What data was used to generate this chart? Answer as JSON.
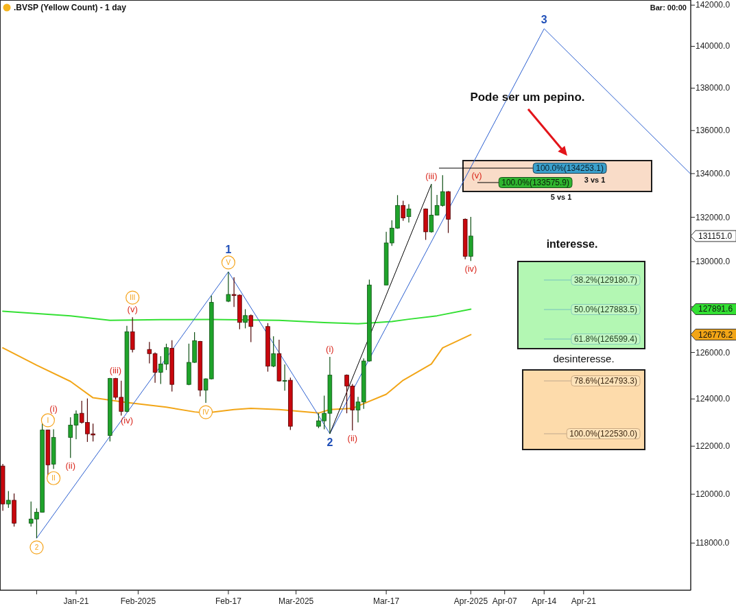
{
  "chart_data": {
    "type": "candlestick",
    "title": ".BVSP (Yellow Count) - 1 day",
    "subtitle": "Bar: 00:00",
    "log": true,
    "xlim": [
      "2025-01-07T12:00",
      "2025-05-10"
    ],
    "xticks": [
      {
        "value": "2025-01-14",
        "label": null
      },
      {
        "value": "2025-01-21",
        "label": "Jan-21"
      },
      {
        "value": "2025-02-01",
        "label": "Feb-2025"
      },
      {
        "value": "2025-02-17",
        "label": "Feb-17"
      },
      {
        "value": "2025-03-01",
        "label": "Mar-2025"
      },
      {
        "value": "2025-03-17",
        "label": "Mar-17"
      },
      {
        "value": "2025-04-01",
        "label": "Apr-2025"
      },
      {
        "value": "2025-04-07",
        "label": "Apr-07"
      },
      {
        "value": "2025-04-14",
        "label": "Apr-14"
      },
      {
        "value": "2025-04-21",
        "label": "Apr-21"
      }
    ],
    "ylim": [
      116100,
      142250
    ],
    "yticks": [
      {
        "value": 118000,
        "label": "118000.0"
      },
      {
        "value": 120000,
        "label": "120000.0"
      },
      {
        "value": 122000,
        "label": "122000.0"
      },
      {
        "value": 124000,
        "label": "124000.0"
      },
      {
        "value": 126000,
        "label": "126000.0"
      },
      {
        "value": 128000,
        "label": null
      },
      {
        "value": 130000,
        "label": "130000.0"
      },
      {
        "value": 132000,
        "label": "132000.0"
      },
      {
        "value": 134000,
        "label": "134000.0"
      },
      {
        "value": 136000,
        "label": "136000.0"
      },
      {
        "value": 138000,
        "label": "138000.0"
      },
      {
        "value": 140000,
        "label": "140000.0"
      },
      {
        "value": 142000,
        "label": "142000.0"
      }
    ],
    "x": [
      "2025-01-08",
      "2025-01-09",
      "2025-01-10",
      "2025-01-13",
      "2025-01-14",
      "2025-01-15",
      "2025-01-16",
      "2025-01-17",
      "2025-01-20",
      "2025-01-21",
      "2025-01-22",
      "2025-01-23",
      "2025-01-24",
      "2025-01-27",
      "2025-01-28",
      "2025-01-29",
      "2025-01-30",
      "2025-01-31",
      "2025-02-03",
      "2025-02-04",
      "2025-02-05",
      "2025-02-06",
      "2025-02-07",
      "2025-02-10",
      "2025-02-11",
      "2025-02-12",
      "2025-02-13",
      "2025-02-14",
      "2025-02-17",
      "2025-02-18",
      "2025-02-19",
      "2025-02-20",
      "2025-02-21",
      "2025-02-24",
      "2025-02-25",
      "2025-02-26",
      "2025-02-27",
      "2025-02-28",
      "2025-03-05",
      "2025-03-06",
      "2025-03-07",
      "2025-03-10",
      "2025-03-11",
      "2025-03-12",
      "2025-03-13",
      "2025-03-14",
      "2025-03-17",
      "2025-03-18",
      "2025-03-19",
      "2025-03-20",
      "2025-03-21",
      "2025-03-24",
      "2025-03-25",
      "2025-03-26",
      "2025-03-27",
      "2025-03-28",
      "2025-03-31",
      "2025-04-01"
    ],
    "ohlc": [
      [
        121170,
        121260,
        119320,
        119600
      ],
      [
        119600,
        120130,
        119440,
        119750
      ],
      [
        119750,
        120030,
        118670,
        118810
      ],
      [
        118810,
        119700,
        118670,
        118980
      ],
      [
        118980,
        119420,
        118200,
        119260
      ],
      [
        119260,
        123000,
        119260,
        122680
      ],
      [
        122680,
        122700,
        120760,
        121220
      ],
      [
        121250,
        122710,
        121050,
        122370
      ],
      [
        122370,
        123220,
        121510,
        122890
      ],
      [
        122890,
        123510,
        122290,
        123360
      ],
      [
        123390,
        123920,
        122950,
        123000
      ],
      [
        123000,
        124020,
        122180,
        122520
      ],
      [
        122520,
        122950,
        122200,
        122470
      ],
      [
        122450,
        124900,
        122200,
        124880
      ],
      [
        124880,
        124900,
        123970,
        124070
      ],
      [
        124070,
        124780,
        123290,
        123470
      ],
      [
        123470,
        127160,
        123430,
        126900
      ],
      [
        126900,
        127540,
        126000,
        126130
      ],
      [
        126130,
        126460,
        125530,
        125950
      ],
      [
        125950,
        126000,
        124690,
        125140
      ],
      [
        125140,
        125840,
        124640,
        125500
      ],
      [
        125500,
        126380,
        125240,
        126210
      ],
      [
        126180,
        126530,
        124320,
        124620
      ],
      [
        124620,
        126380,
        124590,
        125570
      ],
      [
        125570,
        126880,
        125550,
        126510
      ],
      [
        126480,
        126500,
        124110,
        124380
      ],
      [
        124380,
        124880,
        123830,
        124860
      ],
      [
        124860,
        128490,
        124840,
        128190
      ],
      [
        128240,
        129550,
        128200,
        128540
      ],
      [
        128540,
        129300,
        127990,
        128490
      ],
      [
        128510,
        128540,
        127010,
        127310
      ],
      [
        127310,
        127890,
        127050,
        127610
      ],
      [
        127610,
        127660,
        126450,
        127130
      ],
      [
        127130,
        127280,
        125170,
        125410
      ],
      [
        125410,
        126700,
        125360,
        125950
      ],
      [
        125950,
        126550,
        124740,
        124770
      ],
      [
        124770,
        125480,
        124350,
        124790
      ],
      [
        124800,
        124910,
        122680,
        122840
      ],
      [
        122840,
        123390,
        122760,
        123070
      ],
      [
        123070,
        124140,
        122710,
        123390
      ],
      [
        123390,
        125810,
        122530,
        125020
      ],
      [
        125020,
        125050,
        123390,
        124550
      ],
      [
        124550,
        124640,
        122660,
        123530
      ],
      [
        123530,
        124090,
        123000,
        123870
      ],
      [
        123870,
        125740,
        123580,
        125630
      ],
      [
        125630,
        129200,
        125600,
        128960
      ],
      [
        128960,
        131340,
        128950,
        130840
      ],
      [
        130840,
        131860,
        130710,
        131510
      ],
      [
        131510,
        133010,
        131480,
        132540
      ],
      [
        132540,
        132750,
        131840,
        131970
      ],
      [
        132030,
        132600,
        131760,
        132380
      ],
      [
        132380,
        132400,
        130980,
        131340
      ],
      [
        131340,
        133510,
        131300,
        132100
      ],
      [
        132100,
        133020,
        132080,
        132540
      ],
      [
        132540,
        133930,
        132490,
        133170
      ],
      [
        133170,
        133200,
        131290,
        131910
      ],
      [
        131910,
        131950,
        130110,
        130240
      ],
      [
        130240,
        132020,
        130030,
        131151
      ]
    ],
    "series": [
      {
        "type": "line",
        "color": "#33e033",
        "x": [
          "2025-01-08",
          "2025-01-20",
          "2025-01-27",
          "2025-02-05",
          "2025-02-14",
          "2025-02-26",
          "2025-03-06",
          "2025-03-12",
          "2025-03-18",
          "2025-03-21",
          "2025-03-26",
          "2025-04-01"
        ],
        "values": [
          127800,
          127600,
          127400,
          127430,
          127440,
          127400,
          127300,
          127250,
          127350,
          127450,
          127600,
          127891.6
        ]
      },
      {
        "type": "line",
        "color": "#f2a516",
        "x": [
          "2025-01-08",
          "2025-01-14",
          "2025-01-20",
          "2025-01-24",
          "2025-01-30",
          "2025-02-06",
          "2025-02-11",
          "2025-02-13",
          "2025-02-18",
          "2025-02-21",
          "2025-02-26",
          "2025-03-05",
          "2025-03-07",
          "2025-03-11",
          "2025-03-13",
          "2025-03-17",
          "2025-03-20",
          "2025-03-25",
          "2025-03-27",
          "2025-04-01"
        ],
        "values": [
          126200,
          125450,
          124750,
          124050,
          123850,
          123650,
          123450,
          123400,
          123550,
          123600,
          123550,
          123400,
          123550,
          123600,
          123800,
          124200,
          124800,
          125500,
          126200,
          126776.2
        ]
      },
      {
        "type": "line",
        "color": "#2b5fd0",
        "x": [
          "2025-01-14",
          "2025-02-17",
          "2025-03-07",
          "2025-04-14",
          "2025-05-10"
        ],
        "values": [
          118200,
          129550,
          122530,
          140850,
          133980
        ]
      },
      {
        "type": "line",
        "color": "#000000",
        "x": [
          "2025-03-07",
          "2025-03-25"
        ],
        "values": [
          122530,
          133510
        ]
      }
    ],
    "annotations": [
      {
        "text": "2",
        "x": "2025-01-14",
        "y": 118200
      },
      {
        "text": "I",
        "x": "2025-01-16",
        "y": 122700
      },
      {
        "text": "(i)",
        "x": "2025-01-17",
        "y": 122710
      },
      {
        "text": "II",
        "x": "2025-01-17",
        "y": 121050
      },
      {
        "text": "(ii)",
        "x": "2025-01-20",
        "y": 121510
      },
      {
        "text": "(iii)",
        "x": "2025-01-28",
        "y": 124900
      },
      {
        "text": "(iv)",
        "x": "2025-01-30",
        "y": 123430
      },
      {
        "text": "(v)",
        "x": "2025-01-31",
        "y": 127540
      },
      {
        "text": "III",
        "x": "2025-01-31",
        "y": 127540
      },
      {
        "text": "IV",
        "x": "2025-02-13",
        "y": 123830
      },
      {
        "text": "V",
        "x": "2025-02-17",
        "y": 129550
      },
      {
        "text": "1",
        "x": "2025-02-17",
        "y": 129550
      },
      {
        "text": "(i)",
        "x": "2025-03-07",
        "y": 125810
      },
      {
        "text": "2",
        "x": "2025-03-07",
        "y": 122530
      },
      {
        "text": "(ii)",
        "x": "2025-03-11",
        "y": 122660
      },
      {
        "text": "(iii)",
        "x": "2025-03-25",
        "y": 133510
      },
      {
        "text": "(iv)",
        "x": "2025-04-01",
        "y": 130030
      },
      {
        "text": "3",
        "x": "2025-04-14",
        "y": 140850
      },
      "Pode ser um pepino.",
      "100.0%(134253.1)",
      "(v)",
      "3 vs 1",
      "100.0%(133575.9)",
      "5 vs 1",
      "131151.0",
      "interesse.",
      "38.2%(129180.7)",
      "50.0%(127883.5)",
      "61.8%(126599.4)",
      "127891.6",
      "126776.2",
      "desinteresse.",
      "78.6%(124793.3)",
      "100.0%(122530.0)"
    ]
  }
}
